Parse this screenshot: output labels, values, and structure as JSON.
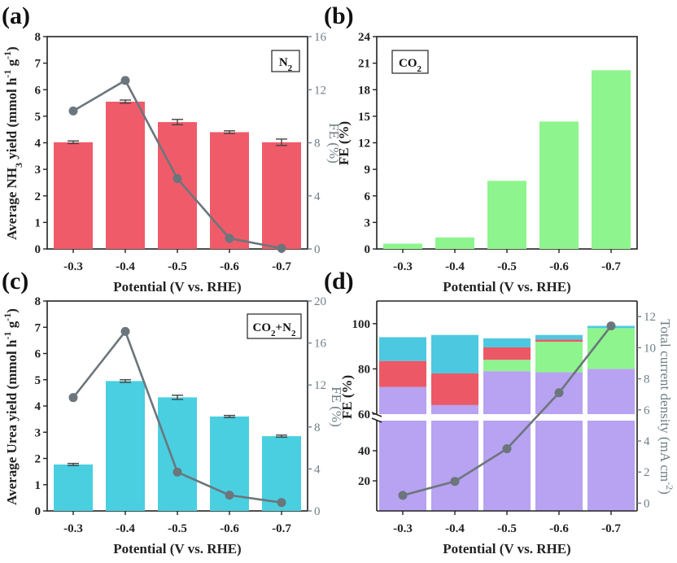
{
  "colors": {
    "nh3_bar": "#f05b6a",
    "co2_bar": "#8ef58e",
    "urea_bar": "#49cfe0",
    "fe_line": "#6b767c",
    "purple": "#b8a2f2",
    "green": "#8ef58e",
    "red": "#ec5866",
    "cyan": "#4cc9e0",
    "axis": "#222222",
    "right_axis": "#6f7f88"
  },
  "chart_data": [
    {
      "panel": "(a)",
      "type": "bar",
      "categories": [
        "-0.3",
        "-0.4",
        "-0.5",
        "-0.6",
        "-0.7"
      ],
      "values": [
        4.02,
        5.55,
        4.78,
        4.4,
        4.02
      ],
      "errors": [
        0.05,
        0.06,
        0.1,
        0.05,
        0.12
      ],
      "line": {
        "name": "FE (%)",
        "values": [
          10.4,
          12.7,
          5.3,
          0.8,
          0.05
        ]
      },
      "xlabel": "Potential (V vs. RHE)",
      "ylabel": "Average NH3 yield (mmol h-1 g-1)",
      "ylabel_parts": {
        "pre": "Average NH",
        "sub": "3",
        "mid": " yield (mmol h",
        "sup1": "-1",
        "sp": " g",
        "sup2": "-1",
        "end": ")"
      },
      "ylabel_right": "FE (%)",
      "ylim": [
        0,
        8
      ],
      "yticks": [
        "0",
        "1",
        "2",
        "3",
        "4",
        "5",
        "6",
        "7",
        "8"
      ],
      "ylim_right": [
        0,
        16
      ],
      "yticks_right": [
        "0",
        "4",
        "8",
        "12",
        "16"
      ],
      "legend": {
        "base": "N",
        "sub": "2",
        "position": "top-right"
      }
    },
    {
      "panel": "(b)",
      "type": "bar",
      "categories": [
        "-0.3",
        "-0.4",
        "-0.5",
        "-0.6",
        "-0.7"
      ],
      "values": [
        0.6,
        1.3,
        7.7,
        14.4,
        20.2
      ],
      "xlabel": "Potential (V vs. RHE)",
      "ylabel": "FE (%)",
      "ylim": [
        0,
        24
      ],
      "yticks": [
        "0",
        "3",
        "6",
        "9",
        "12",
        "15",
        "18",
        "21",
        "24"
      ],
      "legend": {
        "base": "CO",
        "sub": "2",
        "position": "top-left"
      }
    },
    {
      "panel": "(c)",
      "type": "bar",
      "categories": [
        "-0.3",
        "-0.4",
        "-0.5",
        "-0.6",
        "-0.7"
      ],
      "values": [
        1.77,
        4.95,
        4.33,
        3.6,
        2.85
      ],
      "errors": [
        0.04,
        0.05,
        0.08,
        0.04,
        0.04
      ],
      "line": {
        "name": "FE (%)",
        "values": [
          10.8,
          17.1,
          3.7,
          1.5,
          0.8
        ]
      },
      "xlabel": "Potential (V vs. RHE)",
      "ylabel": "Average Urea yield (mmol h-1 g-1)",
      "ylabel_parts": {
        "pre": "Average Urea yield (mmol h",
        "sup1": "-1",
        "sp": " g",
        "sup2": "-1",
        "end": ")"
      },
      "ylabel_right": "FE (%)",
      "ylim": [
        0,
        8
      ],
      "yticks": [
        "0",
        "1",
        "2",
        "3",
        "4",
        "5",
        "6",
        "7",
        "8"
      ],
      "ylim_right": [
        0,
        20
      ],
      "yticks_right": [
        "0",
        "4",
        "8",
        "12",
        "16",
        "20"
      ],
      "legend": {
        "base": "CO",
        "sub": "2",
        "rest": "+N",
        "sub2": "2",
        "position": "top-right"
      }
    },
    {
      "panel": "(d)",
      "type": "bar",
      "stacked": true,
      "categories": [
        "-0.3",
        "-0.4",
        "-0.5",
        "-0.6",
        "-0.7"
      ],
      "series": [
        {
          "name": "purple",
          "color": "#b8a2f2",
          "values": [
            72,
            64,
            79,
            78.5,
            80
          ]
        },
        {
          "name": "green",
          "color": "#8ef58e",
          "values": [
            0,
            0,
            5,
            13.5,
            18
          ]
        },
        {
          "name": "red",
          "color": "#ec5866",
          "values": [
            11.5,
            14,
            5.5,
            1,
            0
          ]
        },
        {
          "name": "cyan",
          "color": "#4cc9e0",
          "values": [
            10.5,
            17,
            4,
            2,
            1
          ]
        }
      ],
      "line": {
        "name": "Total current density (mA cm-2)",
        "values": [
          0.5,
          1.4,
          3.5,
          7.1,
          11.4
        ]
      },
      "xlabel": "Potential (V vs. RHE)",
      "ylabel": "FE (%)",
      "ylabel_right": "Total current density (mA cm-2)",
      "ylabel_right_parts": {
        "pre": "Total current density (mA cm",
        "sup": "-2",
        "end": ")"
      },
      "axis_break": {
        "lower": [
          0,
          60
        ],
        "upper": [
          60,
          110
        ]
      },
      "yticks_lower": [
        "20",
        "40"
      ],
      "yticks_upper": [
        "60",
        "80",
        "100"
      ],
      "ylim_right": [
        -0.5,
        13
      ],
      "yticks_right": [
        "0",
        "2",
        "4",
        "6",
        "8",
        "10",
        "12"
      ]
    }
  ]
}
